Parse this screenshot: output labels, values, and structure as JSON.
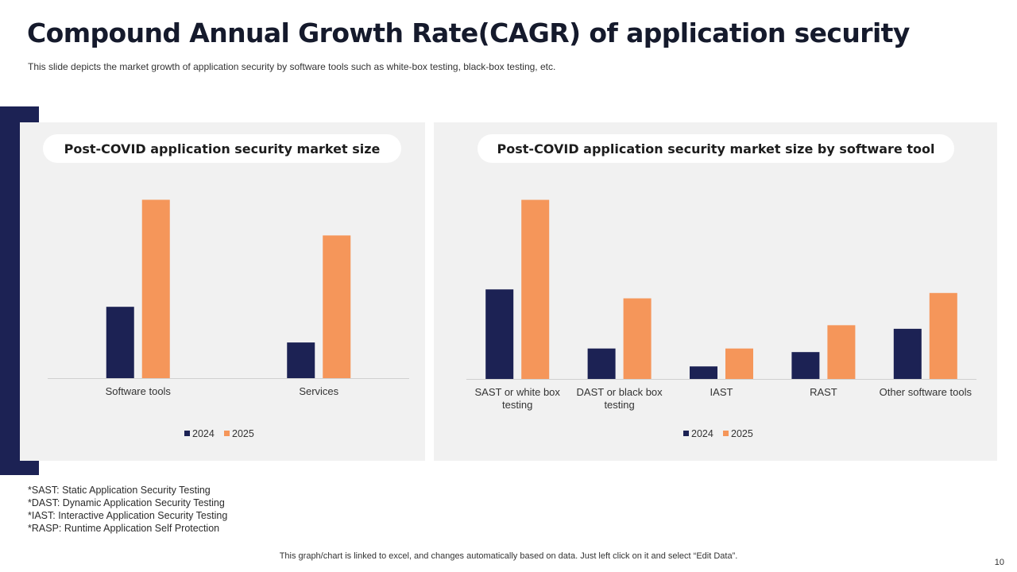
{
  "slide": {
    "title": "Compound Annual Growth Rate(CAGR) of application security",
    "subtitle": "This slide depicts the market growth of application security by software tools such as white-box testing, black-box testing, etc.",
    "footnotes": [
      "*SAST: Static Application Security Testing",
      "*DAST: Dynamic Application Security Testing",
      "*IAST: Interactive Application Security Testing",
      "*RASP: Runtime Application Self Protection"
    ],
    "bottom_note": "This graph/chart is linked to excel, and changes automatically based on data. Just left click on it and select “Edit Data”.",
    "page_number": "10"
  },
  "colors": {
    "series_2024": "#1c2254",
    "series_2025": "#f5965a",
    "accent": "#1c2254",
    "panel_bg": "#f1f1f1"
  },
  "chart_data": [
    {
      "type": "bar",
      "title": "Post-COVID application security market size",
      "categories": [
        "Software tools",
        "Services"
      ],
      "series": [
        {
          "name": "2024",
          "values": [
            4.0,
            2.0
          ]
        },
        {
          "name": "2025",
          "values": [
            10.0,
            8.0
          ]
        }
      ],
      "ylim": [
        0,
        11
      ],
      "legend": "bottom",
      "grid": false
    },
    {
      "type": "bar",
      "title": "Post-COVID application security market size by software tool",
      "categories": [
        "SAST or white box testing",
        "DAST or black box testing",
        "IAST",
        "RAST",
        "Other software tools"
      ],
      "series": [
        {
          "name": "2024",
          "values": [
            5.0,
            1.7,
            0.7,
            1.5,
            2.8
          ]
        },
        {
          "name": "2025",
          "values": [
            10.0,
            4.5,
            1.7,
            3.0,
            4.8
          ]
        }
      ],
      "ylim": [
        0,
        11
      ],
      "legend": "bottom",
      "grid": false
    }
  ]
}
